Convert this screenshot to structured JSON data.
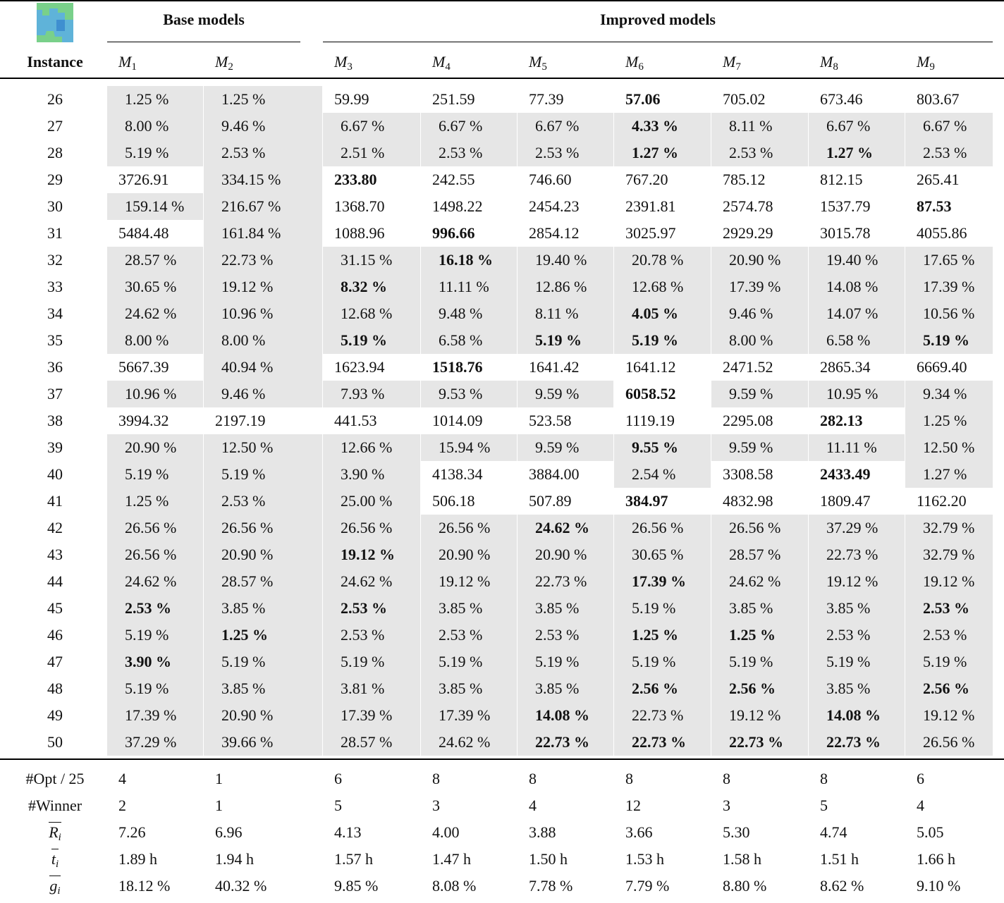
{
  "header": {
    "groups": [
      {
        "label": "Base models"
      },
      {
        "label": "Improved models"
      }
    ],
    "instance": "Instance",
    "models": [
      {
        "base": "M",
        "sub": "1"
      },
      {
        "base": "M",
        "sub": "2"
      },
      {
        "base": "M",
        "sub": "3"
      },
      {
        "base": "M",
        "sub": "4"
      },
      {
        "base": "M",
        "sub": "5"
      },
      {
        "base": "M",
        "sub": "6"
      },
      {
        "base": "M",
        "sub": "7"
      },
      {
        "base": "M",
        "sub": "8"
      },
      {
        "base": "M",
        "sub": "9"
      }
    ]
  },
  "rows": [
    {
      "instance": "26",
      "cells": [
        "1.25 %",
        "1.25 %",
        "59.99",
        "251.59",
        "77.39",
        "57.06",
        "705.02",
        "673.46",
        "803.67"
      ],
      "bold": [
        5
      ]
    },
    {
      "instance": "27",
      "cells": [
        "8.00 %",
        "9.46 %",
        "6.67 %",
        "6.67 %",
        "6.67 %",
        "4.33 %",
        "8.11 %",
        "6.67 %",
        "6.67 %"
      ],
      "bold": [
        5
      ]
    },
    {
      "instance": "28",
      "cells": [
        "5.19 %",
        "2.53 %",
        "2.51 %",
        "2.53 %",
        "2.53 %",
        "1.27 %",
        "2.53 %",
        "1.27 %",
        "2.53 %"
      ],
      "bold": [
        5,
        7
      ]
    },
    {
      "instance": "29",
      "cells": [
        "3726.91",
        "334.15 %",
        "233.80",
        "242.55",
        "746.60",
        "767.20",
        "785.12",
        "812.15",
        "265.41"
      ],
      "bold": [
        2
      ]
    },
    {
      "instance": "30",
      "cells": [
        "159.14 %",
        "216.67 %",
        "1368.70",
        "1498.22",
        "2454.23",
        "2391.81",
        "2574.78",
        "1537.79",
        "87.53"
      ],
      "bold": [
        8
      ]
    },
    {
      "instance": "31",
      "cells": [
        "5484.48",
        "161.84 %",
        "1088.96",
        "996.66",
        "2854.12",
        "3025.97",
        "2929.29",
        "3015.78",
        "4055.86"
      ],
      "bold": [
        3
      ]
    },
    {
      "instance": "32",
      "cells": [
        "28.57 %",
        "22.73 %",
        "31.15 %",
        "16.18 %",
        "19.40 %",
        "20.78 %",
        "20.90 %",
        "19.40 %",
        "17.65 %"
      ],
      "bold": [
        3
      ]
    },
    {
      "instance": "33",
      "cells": [
        "30.65 %",
        "19.12 %",
        "8.32 %",
        "11.11 %",
        "12.86 %",
        "12.68 %",
        "17.39 %",
        "14.08 %",
        "17.39 %"
      ],
      "bold": [
        2
      ]
    },
    {
      "instance": "34",
      "cells": [
        "24.62 %",
        "10.96 %",
        "12.68 %",
        "9.48 %",
        "8.11 %",
        "4.05 %",
        "9.46 %",
        "14.07 %",
        "10.56 %"
      ],
      "bold": [
        5
      ]
    },
    {
      "instance": "35",
      "cells": [
        "8.00 %",
        "8.00 %",
        "5.19 %",
        "6.58 %",
        "5.19 %",
        "5.19 %",
        "8.00 %",
        "6.58 %",
        "5.19 %"
      ],
      "bold": [
        2,
        4,
        5,
        8
      ]
    },
    {
      "instance": "36",
      "cells": [
        "5667.39",
        "40.94 %",
        "1623.94",
        "1518.76",
        "1641.42",
        "1641.12",
        "2471.52",
        "2865.34",
        "6669.40"
      ],
      "bold": [
        3
      ]
    },
    {
      "instance": "37",
      "cells": [
        "10.96 %",
        "9.46 %",
        "7.93 %",
        "9.53 %",
        "9.59 %",
        "6058.52",
        "9.59 %",
        "10.95 %",
        "9.34 %"
      ],
      "bold": [
        5
      ]
    },
    {
      "instance": "38",
      "cells": [
        "3994.32",
        "2197.19",
        "441.53",
        "1014.09",
        "523.58",
        "1119.19",
        "2295.08",
        "282.13",
        "1.25 %"
      ],
      "bold": [
        7
      ]
    },
    {
      "instance": "39",
      "cells": [
        "20.90 %",
        "12.50 %",
        "12.66 %",
        "15.94 %",
        "9.59 %",
        "9.55 %",
        "9.59 %",
        "11.11 %",
        "12.50 %"
      ],
      "bold": [
        5
      ]
    },
    {
      "instance": "40",
      "cells": [
        "5.19 %",
        "5.19 %",
        "3.90 %",
        "4138.34",
        "3884.00",
        "2.54 %",
        "3308.58",
        "2433.49",
        "1.27 %"
      ],
      "bold": [
        7
      ]
    },
    {
      "instance": "41",
      "cells": [
        "1.25 %",
        "2.53 %",
        "25.00 %",
        "506.18",
        "507.89",
        "384.97",
        "4832.98",
        "1809.47",
        "1162.20"
      ],
      "bold": [
        5
      ]
    },
    {
      "instance": "42",
      "cells": [
        "26.56 %",
        "26.56 %",
        "26.56 %",
        "26.56 %",
        "24.62 %",
        "26.56 %",
        "26.56 %",
        "37.29 %",
        "32.79 %"
      ],
      "bold": [
        4
      ]
    },
    {
      "instance": "43",
      "cells": [
        "26.56 %",
        "20.90 %",
        "19.12 %",
        "20.90 %",
        "20.90 %",
        "30.65 %",
        "28.57 %",
        "22.73 %",
        "32.79 %"
      ],
      "bold": [
        2
      ]
    },
    {
      "instance": "44",
      "cells": [
        "24.62 %",
        "28.57 %",
        "24.62 %",
        "19.12 %",
        "22.73 %",
        "17.39 %",
        "24.62 %",
        "19.12 %",
        "19.12 %"
      ],
      "bold": [
        5
      ]
    },
    {
      "instance": "45",
      "cells": [
        "2.53 %",
        "3.85 %",
        "2.53 %",
        "3.85 %",
        "3.85 %",
        "5.19 %",
        "3.85 %",
        "3.85 %",
        "2.53 %"
      ],
      "bold": [
        0,
        2,
        8
      ]
    },
    {
      "instance": "46",
      "cells": [
        "5.19 %",
        "1.25 %",
        "2.53 %",
        "2.53 %",
        "2.53 %",
        "1.25 %",
        "1.25 %",
        "2.53 %",
        "2.53 %"
      ],
      "bold": [
        1,
        5,
        6
      ]
    },
    {
      "instance": "47",
      "cells": [
        "3.90 %",
        "5.19 %",
        "5.19 %",
        "5.19 %",
        "5.19 %",
        "5.19 %",
        "5.19 %",
        "5.19 %",
        "5.19 %"
      ],
      "bold": [
        0
      ]
    },
    {
      "instance": "48",
      "cells": [
        "5.19 %",
        "3.85 %",
        "3.81 %",
        "3.85 %",
        "3.85 %",
        "2.56 %",
        "2.56 %",
        "3.85 %",
        "2.56 %"
      ],
      "bold": [
        5,
        6,
        8
      ]
    },
    {
      "instance": "49",
      "cells": [
        "17.39 %",
        "20.90 %",
        "17.39 %",
        "17.39 %",
        "14.08 %",
        "22.73 %",
        "19.12 %",
        "14.08 %",
        "19.12 %"
      ],
      "bold": [
        4,
        7
      ]
    },
    {
      "instance": "50",
      "cells": [
        "37.29 %",
        "39.66 %",
        "28.57 %",
        "24.62 %",
        "22.73 %",
        "22.73 %",
        "22.73 %",
        "22.73 %",
        "26.56 %"
      ],
      "bold": [
        4,
        5,
        6,
        7
      ]
    }
  ],
  "summary": [
    {
      "label": "#Opt / 25",
      "cells": [
        "4",
        "1",
        "6",
        "8",
        "8",
        "8",
        "8",
        "8",
        "6"
      ]
    },
    {
      "label": "#Winner",
      "cells": [
        "2",
        "1",
        "5",
        "3",
        "4",
        "12",
        "3",
        "5",
        "4"
      ]
    },
    {
      "label": {
        "base": "R",
        "sub": "i",
        "overline": true
      },
      "cells": [
        "7.26",
        "6.96",
        "4.13",
        "4.00",
        "3.88",
        "3.66",
        "5.30",
        "4.74",
        "5.05"
      ]
    },
    {
      "label": {
        "base": "t",
        "sub": "i",
        "overline": true
      },
      "cells": [
        "1.89 h",
        "1.94 h",
        "1.57 h",
        "1.47 h",
        "1.50 h",
        "1.53 h",
        "1.58 h",
        "1.51 h",
        "1.66 h"
      ]
    },
    {
      "label": {
        "base": "g",
        "sub": "i",
        "overline": true
      },
      "cells": [
        "18.12 %",
        "40.32 %",
        "9.85 %",
        "8.08 %",
        "7.78 %",
        "7.79 %",
        "8.80 %",
        "8.62 %",
        "9.10 %"
      ]
    }
  ]
}
